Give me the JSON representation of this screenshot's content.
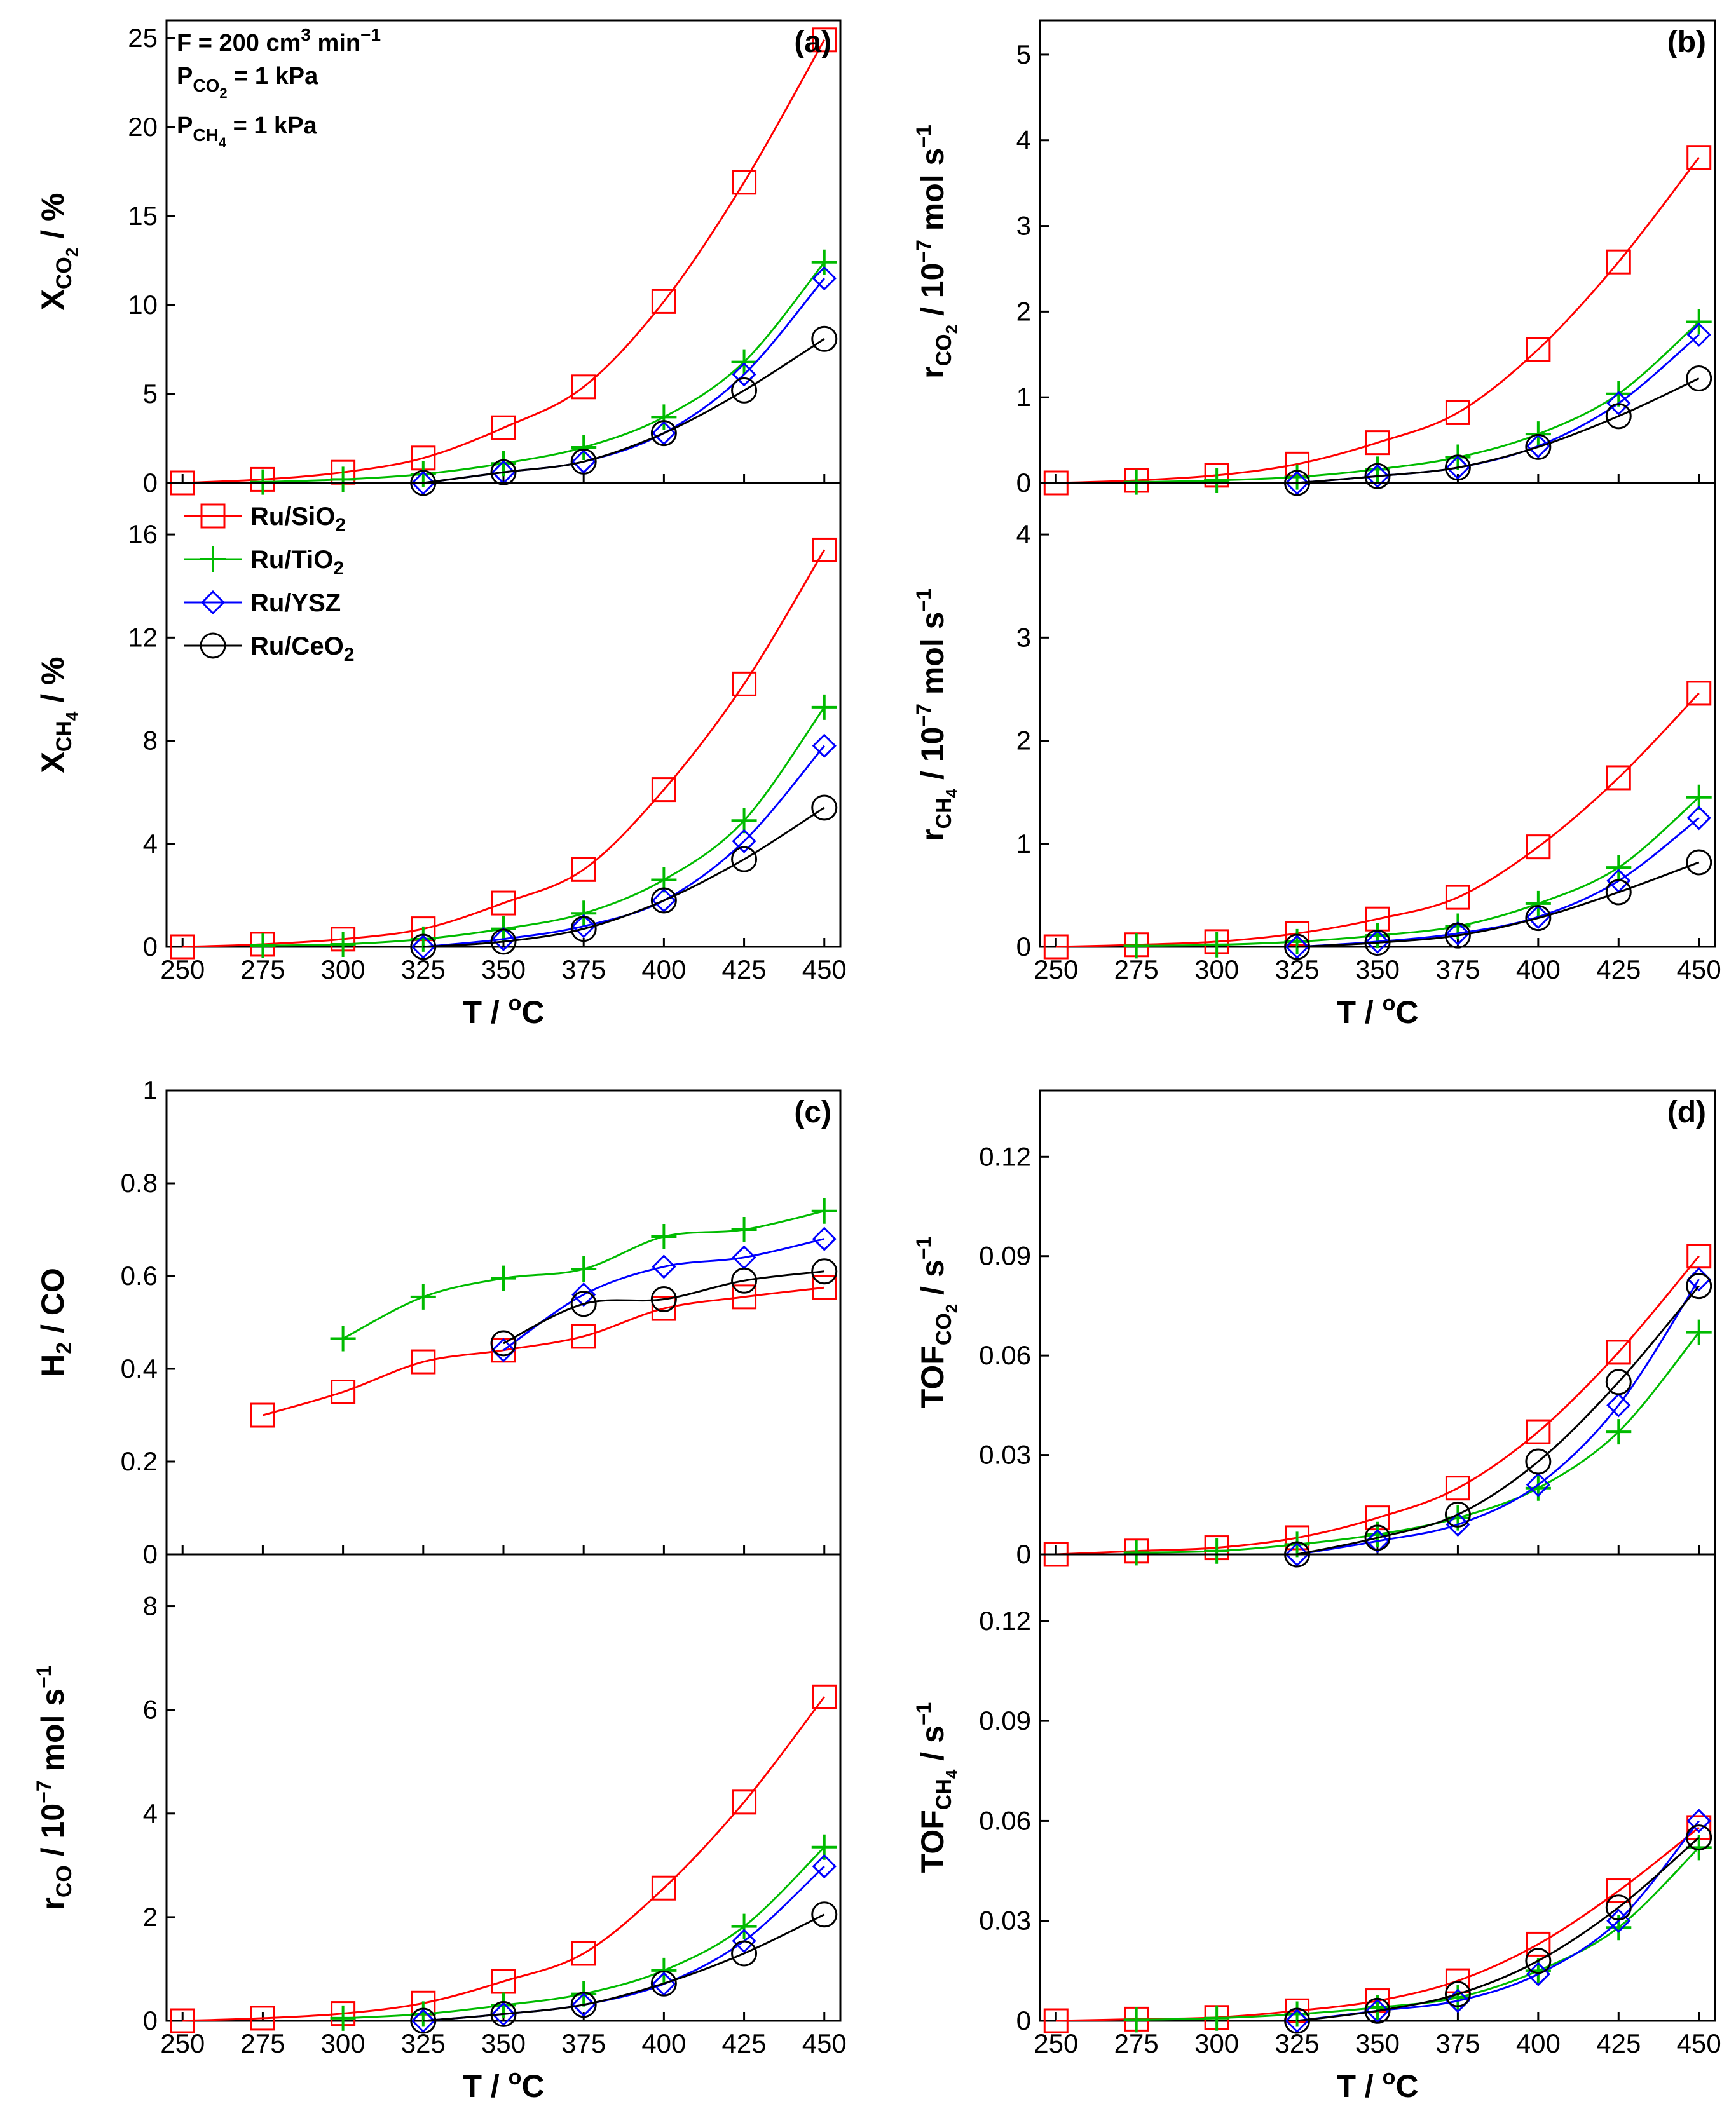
{
  "figure": {
    "conditions": [
      {
        "main": "F = 200 cm",
        "sup": "3",
        "rest": " min",
        "sup2": "−1"
      },
      {
        "main": "P",
        "sub": "CO",
        "sub2": "2",
        "rest": " = 1 kPa"
      },
      {
        "main": "P",
        "sub": "CH",
        "sub2": "4",
        "rest": " = 1 kPa"
      }
    ],
    "legend": [
      {
        "name": "Ru/SiO",
        "sub": "2",
        "color": "#ff0000",
        "marker": "square"
      },
      {
        "name": "Ru/TiO",
        "sub": "2",
        "color": "#00bb00",
        "marker": "plus"
      },
      {
        "name": "Ru/YSZ",
        "sub": "",
        "color": "#0000ff",
        "marker": "diamond"
      },
      {
        "name": "Ru/CeO",
        "sub": "2",
        "color": "#000000",
        "marker": "circle"
      }
    ],
    "xlabel_main": "T / ",
    "xlabel_sup": "o",
    "xlabel_rest": "C"
  },
  "chart_data": [
    {
      "id": "a-top",
      "panel_label": "(a)",
      "type": "line",
      "ylabel": {
        "main": "X",
        "sub": "CO",
        "sub2": "2",
        "rest": " / %"
      },
      "ylim": [
        0,
        26
      ],
      "yticks": [
        0,
        5,
        10,
        15,
        20,
        25
      ],
      "ytick_labels": [
        "0",
        "5",
        "10",
        "15",
        "20",
        "25"
      ],
      "xlim": [
        245,
        455
      ],
      "xticks": [
        250,
        275,
        300,
        325,
        350,
        375,
        400,
        425,
        450
      ],
      "series": [
        {
          "name": "Ru/SiO2",
          "x": [
            250,
            275,
            300,
            325,
            350,
            375,
            400,
            425,
            450
          ],
          "values": [
            0,
            0.2,
            0.6,
            1.4,
            3.1,
            5.4,
            10.2,
            16.9,
            24.9
          ]
        },
        {
          "name": "Ru/TiO2",
          "x": [
            275,
            300,
            325,
            350,
            375,
            400,
            425,
            450
          ],
          "values": [
            0.05,
            0.2,
            0.5,
            1.1,
            2.0,
            3.7,
            6.8,
            12.4
          ]
        },
        {
          "name": "Ru/YSZ",
          "x": [
            325,
            350,
            375,
            400,
            425,
            450
          ],
          "values": [
            0,
            0.6,
            1.2,
            2.8,
            6.1,
            11.5
          ]
        },
        {
          "name": "Ru/CeO2",
          "x": [
            325,
            350,
            375,
            400,
            425,
            450
          ],
          "values": [
            0,
            0.6,
            1.2,
            2.8,
            5.2,
            8.1
          ]
        }
      ]
    },
    {
      "id": "a-bottom",
      "panel_label": "",
      "type": "line",
      "ylabel": {
        "main": "X",
        "sub": "CH",
        "sub2": "4",
        "rest": " / %"
      },
      "ylim": [
        0,
        18
      ],
      "yticks": [
        0,
        4,
        8,
        12,
        16
      ],
      "ytick_labels": [
        "0",
        "4",
        "8",
        "12",
        "16"
      ],
      "xlim": [
        245,
        455
      ],
      "xticks": [
        250,
        275,
        300,
        325,
        350,
        375,
        400,
        425,
        450
      ],
      "xtick_labels": [
        "250",
        "275",
        "300",
        "325",
        "350",
        "375",
        "400",
        "425",
        "450"
      ],
      "series": [
        {
          "name": "Ru/SiO2",
          "x": [
            250,
            275,
            300,
            325,
            350,
            375,
            400,
            425,
            450
          ],
          "values": [
            0,
            0.1,
            0.3,
            0.7,
            1.7,
            3.0,
            6.1,
            10.2,
            15.4
          ]
        },
        {
          "name": "Ru/TiO2",
          "x": [
            275,
            300,
            325,
            350,
            375,
            400,
            425,
            450
          ],
          "values": [
            0.05,
            0.1,
            0.3,
            0.7,
            1.3,
            2.6,
            4.9,
            9.3
          ]
        },
        {
          "name": "Ru/YSZ",
          "x": [
            325,
            350,
            375,
            400,
            425,
            450
          ],
          "values": [
            0,
            0.3,
            0.8,
            1.8,
            4.1,
            7.8
          ]
        },
        {
          "name": "Ru/CeO2",
          "x": [
            325,
            350,
            375,
            400,
            425,
            450
          ],
          "values": [
            0,
            0.2,
            0.7,
            1.8,
            3.4,
            5.4
          ]
        }
      ]
    },
    {
      "id": "b-top",
      "panel_label": "(b)",
      "type": "line",
      "ylabel": {
        "main": "r",
        "sub": "CO",
        "sub2": "2",
        "rest": " / 10",
        "sup": "−7",
        "rest2": " mol s",
        "sup2": "−1"
      },
      "ylim": [
        0,
        5.4
      ],
      "yticks": [
        0,
        1,
        2,
        3,
        4,
        5
      ],
      "ytick_labels": [
        "0",
        "1",
        "2",
        "3",
        "4",
        "5"
      ],
      "xlim": [
        245,
        455
      ],
      "xticks": [
        250,
        275,
        300,
        325,
        350,
        375,
        400,
        425,
        450
      ],
      "series": [
        {
          "name": "Ru/SiO2",
          "x": [
            250,
            275,
            300,
            325,
            350,
            375,
            400,
            425,
            450
          ],
          "values": [
            0,
            0.03,
            0.09,
            0.22,
            0.47,
            0.82,
            1.56,
            2.58,
            3.8
          ]
        },
        {
          "name": "Ru/TiO2",
          "x": [
            275,
            300,
            325,
            350,
            375,
            400,
            425,
            450
          ],
          "values": [
            0.01,
            0.03,
            0.07,
            0.16,
            0.3,
            0.57,
            1.04,
            1.88
          ]
        },
        {
          "name": "Ru/YSZ",
          "x": [
            325,
            350,
            375,
            400,
            425,
            450
          ],
          "values": [
            0,
            0.08,
            0.18,
            0.43,
            0.93,
            1.73
          ]
        },
        {
          "name": "Ru/CeO2",
          "x": [
            325,
            350,
            375,
            400,
            425,
            450
          ],
          "values": [
            0,
            0.08,
            0.18,
            0.42,
            0.78,
            1.22
          ]
        }
      ]
    },
    {
      "id": "b-bottom",
      "panel_label": "",
      "type": "line",
      "ylabel": {
        "main": "r",
        "sub": "CH",
        "sub2": "4",
        "rest": " / 10",
        "sup": "−7",
        "rest2": " mol s",
        "sup2": "−1"
      },
      "ylim": [
        0,
        4.5
      ],
      "yticks": [
        0,
        1,
        2,
        3,
        4
      ],
      "ytick_labels": [
        "0",
        "1",
        "2",
        "3",
        "4"
      ],
      "xlim": [
        245,
        455
      ],
      "xticks": [
        250,
        275,
        300,
        325,
        350,
        375,
        400,
        425,
        450
      ],
      "xtick_labels": [
        "250",
        "275",
        "300",
        "325",
        "350",
        "375",
        "400",
        "425",
        "450"
      ],
      "series": [
        {
          "name": "Ru/SiO2",
          "x": [
            250,
            275,
            300,
            325,
            350,
            375,
            400,
            425,
            450
          ],
          "values": [
            0,
            0.02,
            0.05,
            0.13,
            0.27,
            0.48,
            0.97,
            1.64,
            2.46
          ]
        },
        {
          "name": "Ru/TiO2",
          "x": [
            275,
            300,
            325,
            350,
            375,
            400,
            425,
            450
          ],
          "values": [
            0.01,
            0.02,
            0.05,
            0.11,
            0.2,
            0.42,
            0.77,
            1.45
          ]
        },
        {
          "name": "Ru/YSZ",
          "x": [
            325,
            350,
            375,
            400,
            425,
            450
          ],
          "values": [
            0,
            0.05,
            0.13,
            0.29,
            0.64,
            1.25
          ]
        },
        {
          "name": "Ru/CeO2",
          "x": [
            325,
            350,
            375,
            400,
            425,
            450
          ],
          "values": [
            0,
            0.04,
            0.11,
            0.28,
            0.53,
            0.82
          ]
        }
      ]
    },
    {
      "id": "c-top",
      "panel_label": "(c)",
      "type": "line",
      "ylabel": {
        "main": "H",
        "sub": "2",
        "sub2": "",
        "rest": " / CO"
      },
      "ylim": [
        0,
        1
      ],
      "yticks": [
        0,
        0.2,
        0.4,
        0.6,
        0.8,
        1
      ],
      "ytick_labels": [
        "0",
        "0.2",
        "0.4",
        "0.6",
        "0.8",
        "1"
      ],
      "xlim": [
        245,
        455
      ],
      "xticks": [
        250,
        275,
        300,
        325,
        350,
        375,
        400,
        425,
        450
      ],
      "series": [
        {
          "name": "Ru/SiO2",
          "x": [
            275,
            300,
            325,
            350,
            375,
            400,
            425,
            450
          ],
          "values": [
            0.3,
            0.35,
            0.415,
            0.44,
            0.47,
            0.53,
            0.555,
            0.575
          ]
        },
        {
          "name": "Ru/TiO2",
          "x": [
            300,
            325,
            350,
            375,
            400,
            425,
            450
          ],
          "values": [
            0.465,
            0.555,
            0.595,
            0.615,
            0.685,
            0.7,
            0.74
          ]
        },
        {
          "name": "Ru/YSZ",
          "x": [
            350,
            375,
            400,
            425,
            450
          ],
          "values": [
            0.44,
            0.56,
            0.62,
            0.64,
            0.68
          ]
        },
        {
          "name": "Ru/CeO2",
          "x": [
            350,
            375,
            400,
            425,
            450
          ],
          "values": [
            0.455,
            0.54,
            0.55,
            0.59,
            0.61
          ]
        }
      ]
    },
    {
      "id": "c-bottom",
      "panel_label": "",
      "type": "line",
      "ylabel": {
        "main": "r",
        "sub": "CO",
        "sub2": "",
        "rest": " / 10",
        "sup": "−7",
        "rest2": " mol s",
        "sup2": "−1"
      },
      "ylim": [
        0,
        9
      ],
      "yticks": [
        0,
        2,
        4,
        6,
        8
      ],
      "ytick_labels": [
        "0",
        "2",
        "4",
        "6",
        "8"
      ],
      "xlim": [
        245,
        455
      ],
      "xticks": [
        250,
        275,
        300,
        325,
        350,
        375,
        400,
        425,
        450
      ],
      "xtick_labels": [
        "250",
        "275",
        "300",
        "325",
        "350",
        "375",
        "400",
        "425",
        "450"
      ],
      "series": [
        {
          "name": "Ru/SiO2",
          "x": [
            250,
            275,
            300,
            325,
            350,
            375,
            400,
            425,
            450
          ],
          "values": [
            0,
            0.05,
            0.14,
            0.34,
            0.76,
            1.3,
            2.56,
            4.22,
            6.25
          ]
        },
        {
          "name": "Ru/TiO2",
          "x": [
            300,
            325,
            350,
            375,
            400,
            425,
            450
          ],
          "values": [
            0.05,
            0.13,
            0.3,
            0.52,
            0.97,
            1.82,
            3.35
          ]
        },
        {
          "name": "Ru/YSZ",
          "x": [
            325,
            350,
            375,
            400,
            425,
            450
          ],
          "values": [
            0,
            0.13,
            0.31,
            0.71,
            1.54,
            2.98
          ]
        },
        {
          "name": "Ru/CeO2",
          "x": [
            325,
            350,
            375,
            400,
            425,
            450
          ],
          "values": [
            0,
            0.13,
            0.31,
            0.72,
            1.3,
            2.05
          ]
        }
      ]
    },
    {
      "id": "d-top",
      "panel_label": "(d)",
      "type": "line",
      "ylabel": {
        "main": "TOF",
        "sub": "CO",
        "sub2": "2",
        "rest": " / s",
        "sup": "−1"
      },
      "ylim": [
        0,
        0.14
      ],
      "yticks": [
        0,
        0.03,
        0.06,
        0.09,
        0.12
      ],
      "ytick_labels": [
        "0",
        "0.03",
        "0.06",
        "0.09",
        "0.12"
      ],
      "xlim": [
        245,
        455
      ],
      "xticks": [
        250,
        275,
        300,
        325,
        350,
        375,
        400,
        425,
        450
      ],
      "series": [
        {
          "name": "Ru/SiO2",
          "x": [
            250,
            275,
            300,
            325,
            350,
            375,
            400,
            425,
            450
          ],
          "values": [
            0,
            0.001,
            0.002,
            0.005,
            0.011,
            0.02,
            0.037,
            0.061,
            0.09
          ]
        },
        {
          "name": "Ru/TiO2",
          "x": [
            275,
            300,
            325,
            350,
            375,
            400,
            425,
            450
          ],
          "values": [
            0.0005,
            0.001,
            0.003,
            0.006,
            0.011,
            0.02,
            0.037,
            0.067
          ]
        },
        {
          "name": "Ru/YSZ",
          "x": [
            325,
            350,
            375,
            400,
            425,
            450
          ],
          "values": [
            0,
            0.004,
            0.009,
            0.021,
            0.045,
            0.083
          ]
        },
        {
          "name": "Ru/CeO2",
          "x": [
            325,
            350,
            375,
            400,
            425,
            450
          ],
          "values": [
            0,
            0.005,
            0.012,
            0.028,
            0.052,
            0.081
          ]
        }
      ]
    },
    {
      "id": "d-bottom",
      "panel_label": "",
      "type": "line",
      "ylabel": {
        "main": "TOF",
        "sub": "CH",
        "sub2": "4",
        "rest": " / s",
        "sup": "−1"
      },
      "ylim": [
        0,
        0.14
      ],
      "yticks": [
        0,
        0.03,
        0.06,
        0.09,
        0.12
      ],
      "ytick_labels": [
        "0",
        "0.03",
        "0.06",
        "0.09",
        "0.12"
      ],
      "xlim": [
        245,
        455
      ],
      "xticks": [
        250,
        275,
        300,
        325,
        350,
        375,
        400,
        425,
        450
      ],
      "xtick_labels": [
        "250",
        "275",
        "300",
        "325",
        "350",
        "375",
        "400",
        "425",
        "450"
      ],
      "series": [
        {
          "name": "Ru/SiO2",
          "x": [
            250,
            275,
            300,
            325,
            350,
            375,
            400,
            425,
            450
          ],
          "values": [
            0,
            0.0005,
            0.001,
            0.003,
            0.006,
            0.012,
            0.023,
            0.039,
            0.058
          ]
        },
        {
          "name": "Ru/TiO2",
          "x": [
            275,
            300,
            325,
            350,
            375,
            400,
            425,
            450
          ],
          "values": [
            0.0003,
            0.0008,
            0.002,
            0.004,
            0.007,
            0.015,
            0.028,
            0.052
          ]
        },
        {
          "name": "Ru/YSZ",
          "x": [
            325,
            350,
            375,
            400,
            425,
            450
          ],
          "values": [
            0,
            0.003,
            0.006,
            0.014,
            0.03,
            0.06
          ]
        },
        {
          "name": "Ru/CeO2",
          "x": [
            325,
            350,
            375,
            400,
            425,
            450
          ],
          "values": [
            0,
            0.003,
            0.008,
            0.018,
            0.034,
            0.055
          ]
        }
      ]
    }
  ]
}
